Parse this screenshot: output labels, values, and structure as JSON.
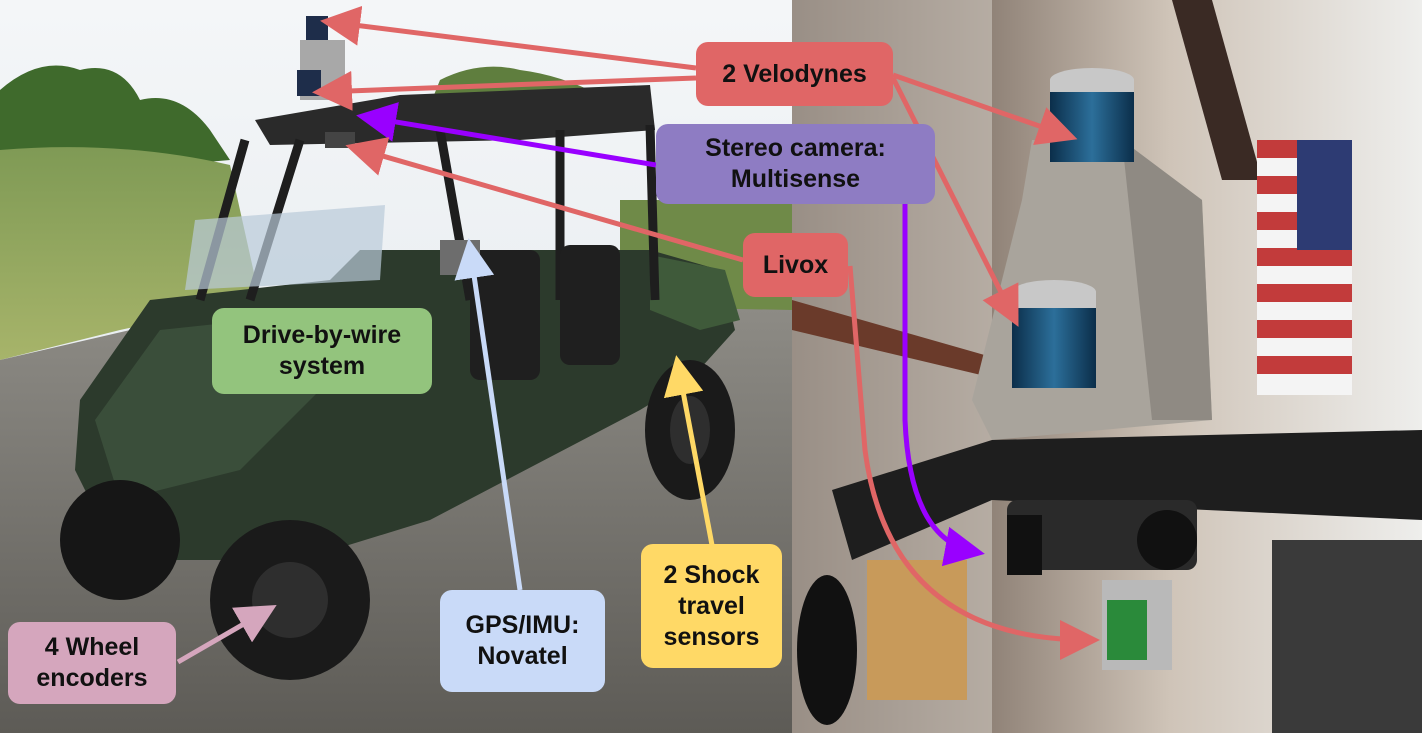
{
  "labels": {
    "velodynes": "2 Velodynes",
    "stereo_camera": "Stereo camera:\nMultisense",
    "livox": "Livox",
    "drive_by_wire": "Drive-by-wire\nsystem",
    "gps_imu": "GPS/IMU:\nNovatel",
    "shock_sensors": "2 Shock\ntravel\nsensors",
    "wheel_encoders": "4 Wheel\nencoders"
  },
  "colors": {
    "red": "#e06666",
    "purple": "#8e7cc3",
    "purple_arrow": "#9900ff",
    "green": "#93c47d",
    "light_blue": "#c9daf8",
    "yellow": "#ffd966",
    "pink": "#d5a6bd"
  },
  "photos": {
    "left": "utility-vehicle-with-sensors-outdoors",
    "right": "sensor-mount-closeup-in-garage"
  }
}
